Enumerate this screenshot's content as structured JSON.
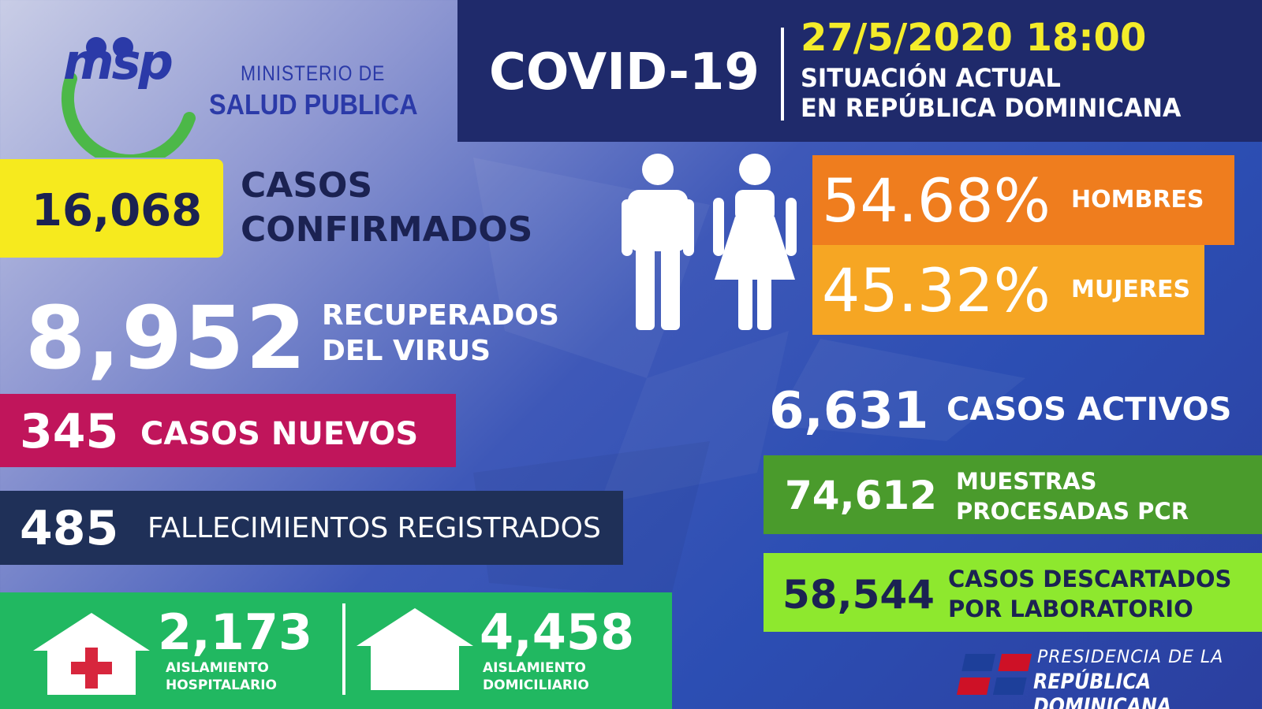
{
  "header": {
    "logo_text": "msp",
    "ministry_line1": "MINISTERIO DE",
    "ministry_line2": "SALUD PUBLICA",
    "title": "COVID-19",
    "datetime": "27/5/2020 18:00",
    "subtitle_line1": "SITUACIÓN ACTUAL",
    "subtitle_line2": "EN REPÚBLICA DOMINICANA"
  },
  "confirmed": {
    "value": "16,068",
    "label_line1": "CASOS",
    "label_line2": "CONFIRMADOS"
  },
  "recovered": {
    "value": "8,952",
    "label_line1": "RECUPERADOS",
    "label_line2": "DEL VIRUS"
  },
  "new_cases": {
    "value": "345",
    "label": "CASOS NUEVOS"
  },
  "deaths": {
    "value": "485",
    "label": "FALLECIMIENTOS REGISTRADOS"
  },
  "isolation": {
    "hospital_value": "2,173",
    "hospital_label_line1": "AISLAMIENTO",
    "hospital_label_line2": "HOSPITALARIO",
    "home_value": "4,458",
    "home_label_line1": "AISLAMIENTO",
    "home_label_line2": "DOMICILIARIO"
  },
  "gender": {
    "men_value": "54.68%",
    "men_label": "HOMBRES",
    "women_value": "45.32%",
    "women_label": "MUJERES"
  },
  "active": {
    "value": "6,631",
    "label": "CASOS ACTIVOS"
  },
  "pcr": {
    "value": "74,612",
    "label_line1": "MUESTRAS",
    "label_line2": "PROCESADAS PCR"
  },
  "discarded": {
    "value": "58,544",
    "label_line1": "CASOS DESCARTADOS",
    "label_line2": "POR LABORATORIO"
  },
  "footer": {
    "presidencia_line1": "PRESIDENCIA DE LA",
    "presidencia_line2": "REPÚBLICA DOMINICANA"
  },
  "colors": {
    "header_bg": "#1f2a6b",
    "date_yellow": "#f4ec2a",
    "confirmed_yellow": "#f6ea1e",
    "new_cases_magenta": "#c0155b",
    "deaths_navy": "#1f3058",
    "isolation_green": "#21b861",
    "men_orange": "#ef7d1e",
    "women_orange": "#f6a623",
    "pcr_green": "#4a9b2c",
    "discarded_lime": "#8ee82e"
  }
}
